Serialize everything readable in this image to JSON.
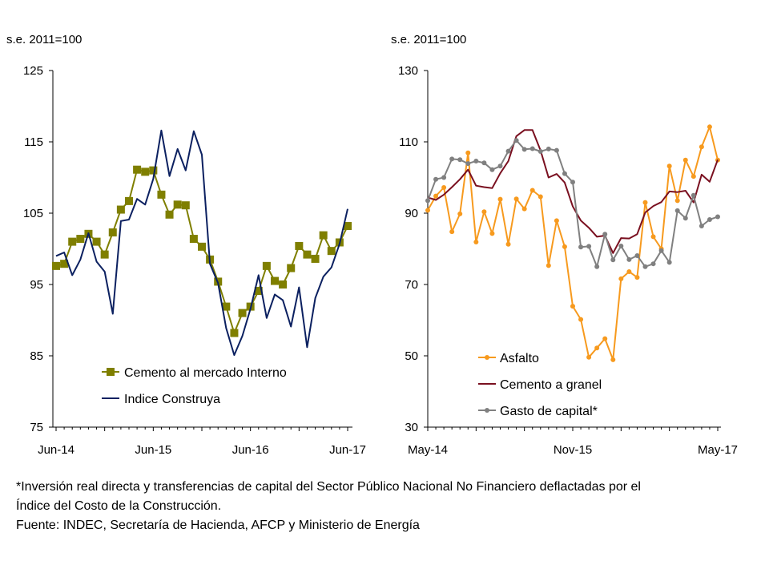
{
  "chart_data": [
    {
      "type": "line",
      "unit_label": "s.e. 2011=100",
      "ylim": [
        75,
        125
      ],
      "yticks": [
        75,
        85,
        95,
        105,
        115,
        125
      ],
      "x_count": 37,
      "xtick_labels": [
        {
          "i": 0,
          "label": "Jun-14"
        },
        {
          "i": 12,
          "label": "Jun-15"
        },
        {
          "i": 24,
          "label": "Jun-16"
        },
        {
          "i": 36,
          "label": "Jun-17"
        }
      ],
      "series": [
        {
          "name": "Cemento al mercado Interno",
          "color": "#7f7f00",
          "marker": "square",
          "values": [
            97.6,
            97.9,
            101.0,
            101.4,
            102.1,
            101.0,
            99.2,
            102.3,
            105.5,
            106.7,
            111.1,
            110.8,
            111.0,
            107.6,
            104.8,
            106.2,
            106.1,
            101.4,
            100.3,
            98.5,
            95.4,
            91.9,
            88.2,
            91.0,
            91.9,
            94.1,
            97.6,
            95.5,
            95.0,
            97.3,
            100.4,
            99.2,
            98.6,
            101.9,
            99.7,
            100.9,
            103.2
          ]
        },
        {
          "name": "Indice Construya",
          "color": "#0b2060",
          "marker": "none",
          "values": [
            99.0,
            99.5,
            96.3,
            98.5,
            102.2,
            98.2,
            96.8,
            90.9,
            103.9,
            104.1,
            107.0,
            106.2,
            109.8,
            116.6,
            110.2,
            114.0,
            111.0,
            116.5,
            113.2,
            97.9,
            95.2,
            88.9,
            85.1,
            87.8,
            91.6,
            96.3,
            90.3,
            93.6,
            92.8,
            89.1,
            94.6,
            86.2,
            93.1,
            96.1,
            97.4,
            100.7,
            105.6
          ]
        }
      ]
    },
    {
      "type": "line",
      "unit_label": "s.e. 2011=100",
      "ylim": [
        30,
        130
      ],
      "yticks": [
        30,
        50,
        70,
        90,
        110,
        130
      ],
      "x_count": 37,
      "xtick_labels": [
        {
          "i": 0,
          "label": "May-14"
        },
        {
          "i": 18,
          "label": "Nov-15"
        },
        {
          "i": 36,
          "label": "May-17"
        }
      ],
      "series": [
        {
          "name": "Asfalto",
          "color": "#f79a1e",
          "marker": "circle",
          "values": [
            90.8,
            94.8,
            97.2,
            84.8,
            89.8,
            106.9,
            81.9,
            90.4,
            84.3,
            93.9,
            81.3,
            94.0,
            91.2,
            96.4,
            94.6,
            75.3,
            87.9,
            80.6,
            63.9,
            60.2,
            49.6,
            52.2,
            54.8,
            48.9,
            71.6,
            73.6,
            72.0,
            93.0,
            83.4,
            80.0,
            103.2,
            93.5,
            104.9,
            100.3,
            108.6,
            114.2,
            104.9
          ]
        },
        {
          "name": "Cemento a granel",
          "color": "#7a1020",
          "marker": "none",
          "values": [
            94.4,
            93.7,
            95.2,
            97.3,
            99.5,
            102.2,
            97.7,
            97.3,
            97.0,
            101.2,
            104.6,
            111.6,
            113.3,
            113.3,
            107.6,
            100.0,
            101.0,
            98.6,
            91.9,
            87.9,
            85.9,
            83.4,
            83.7,
            78.8,
            83.0,
            82.9,
            84.1,
            90.2,
            92.0,
            93.1,
            96.1,
            95.9,
            96.3,
            93.0,
            100.8,
            98.8,
            105.0
          ]
        },
        {
          "name": "Gasto de capital*",
          "color": "#808080",
          "marker": "circle",
          "values": [
            93.5,
            99.5,
            100.0,
            105.2,
            105.0,
            103.9,
            104.6,
            104.1,
            102.2,
            103.2,
            107.4,
            110.4,
            107.9,
            108.1,
            107.3,
            108.0,
            107.6,
            101.1,
            98.7,
            80.5,
            80.7,
            75.0,
            84.1,
            76.9,
            80.8,
            77.0,
            78.1,
            75.0,
            75.8,
            79.5,
            76.2,
            90.7,
            88.6,
            95.0,
            86.4,
            88.2,
            89.0
          ]
        }
      ]
    }
  ],
  "footnote": {
    "line1": "*Inversión real directa y transferencias de capital del Sector Público Nacional No Financiero deflactadas por el",
    "line2": "Índice del Costo de la Construcción.",
    "line3": "Fuente: INDEC, Secretaría de Hacienda, AFCP y Ministerio de Energía"
  }
}
